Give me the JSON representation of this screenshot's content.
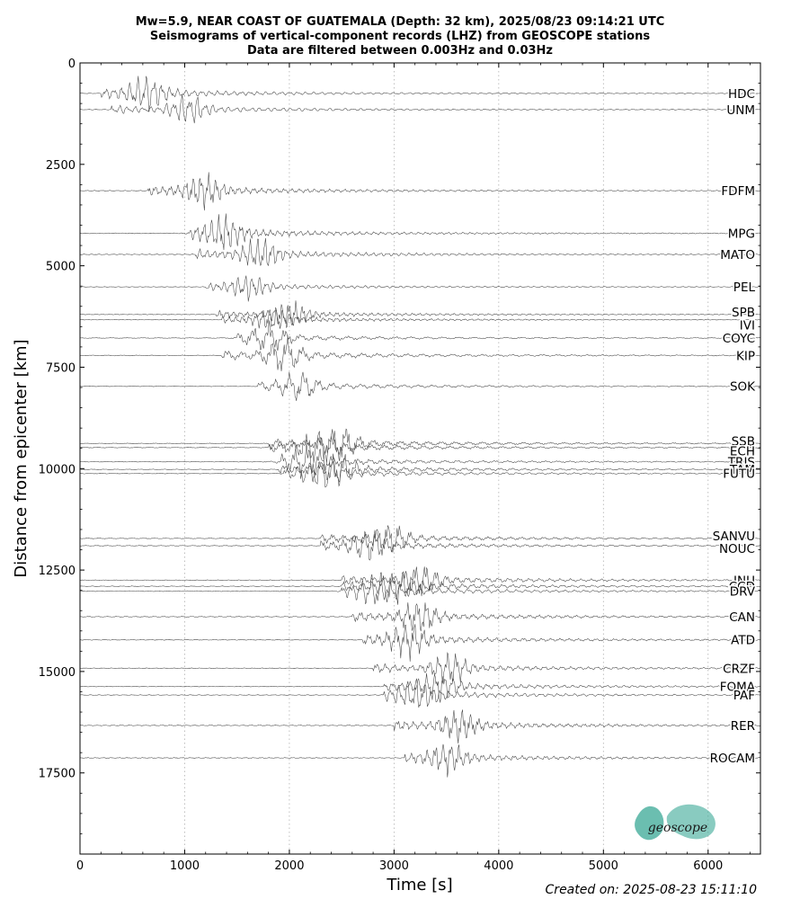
{
  "title_lines": [
    "Mw=5.9, NEAR COAST OF GUATEMALA (Depth: 32 km), 2025/08/23 09:14:21 UTC",
    "Seismograms of vertical-component records (LHZ) from GEOSCOPE stations",
    "Data are filtered between 0.003Hz and 0.03Hz"
  ],
  "created_label": "Created on: 2025-08-23 15:11:10",
  "logo_text": "geoscope",
  "colors": {
    "trace": "#444444",
    "logo_teal": "#3aa896",
    "grid": "#b0b0b0"
  },
  "chart_data": {
    "type": "line",
    "title": "Mw=5.9, NEAR COAST OF GUATEMALA (Depth: 32 km), 2025/08/23 09:14:21 UTC",
    "xlabel": "Time [s]",
    "ylabel": "Distance from epicenter [km]",
    "xlim": [
      0,
      6500
    ],
    "ylim": [
      19500,
      0
    ],
    "y_inverted": true,
    "xticks": [
      0,
      1000,
      2000,
      3000,
      4000,
      5000,
      6000
    ],
    "yticks": [
      0,
      2500,
      5000,
      7500,
      10000,
      12500,
      15000,
      17500
    ],
    "grid": "vertical-dotted",
    "series": [
      {
        "name": "HDC",
        "distance": 750,
        "onset": 200,
        "amp": 420,
        "label_offset": 0
      },
      {
        "name": "UNM",
        "distance": 1150,
        "onset": 300,
        "amp": 380,
        "label_offset": 0
      },
      {
        "name": "FDFM",
        "distance": 3150,
        "onset": 650,
        "amp": 420,
        "label_offset": 0
      },
      {
        "name": "MPG",
        "distance": 4200,
        "onset": 1050,
        "amp": 420,
        "label_offset": 0
      },
      {
        "name": "MATO",
        "distance": 4720,
        "onset": 1100,
        "amp": 420,
        "label_offset": 0
      },
      {
        "name": "PEL",
        "distance": 5520,
        "onset": 1200,
        "amp": 300,
        "label_offset": 0
      },
      {
        "name": "SPB",
        "distance": 6200,
        "onset": 1300,
        "amp": 320,
        "label_offset": -10
      },
      {
        "name": "IVI",
        "distance": 6330,
        "onset": 1350,
        "amp": 300,
        "label_offset": 20
      },
      {
        "name": "COYC",
        "distance": 6780,
        "onset": 1500,
        "amp": 320,
        "label_offset": 0
      },
      {
        "name": "KIP",
        "distance": 7210,
        "onset": 1350,
        "amp": 420,
        "label_offset": 0
      },
      {
        "name": "SOK",
        "distance": 7970,
        "onset": 1700,
        "amp": 350,
        "label_offset": 0
      },
      {
        "name": "SSB",
        "distance": 9380,
        "onset": 1800,
        "amp": 420,
        "label_offset": -10
      },
      {
        "name": "ECH",
        "distance": 9480,
        "onset": 1800,
        "amp": 400,
        "label_offset": 12
      },
      {
        "name": "TRIS",
        "distance": 9830,
        "onset": 1900,
        "amp": 380,
        "label_offset": 0
      },
      {
        "name": "TAM",
        "distance": 10020,
        "onset": 1900,
        "amp": 380,
        "label_offset": 0
      },
      {
        "name": "FUTU",
        "distance": 10120,
        "onset": 1950,
        "amp": 380,
        "label_offset": 0
      },
      {
        "name": "SANVU",
        "distance": 11720,
        "onset": 2300,
        "amp": 380,
        "label_offset": -10
      },
      {
        "name": "NOUC",
        "distance": 11900,
        "onset": 2300,
        "amp": 380,
        "label_offset": 10
      },
      {
        "name": "INU",
        "distance": 12750,
        "onset": 2500,
        "amp": 420,
        "label_offset": 0
      },
      {
        "name": "CCD",
        "distance": 12900,
        "onset": 2500,
        "amp": 400,
        "label_offset": 0
      },
      {
        "name": "DRV",
        "distance": 13020,
        "onset": 2500,
        "amp": 400,
        "label_offset": 0
      },
      {
        "name": "CAN",
        "distance": 13650,
        "onset": 2600,
        "amp": 420,
        "label_offset": 0
      },
      {
        "name": "ATD",
        "distance": 14220,
        "onset": 2700,
        "amp": 420,
        "label_offset": 0
      },
      {
        "name": "CRZF",
        "distance": 14920,
        "onset": 2800,
        "amp": 400,
        "label_offset": 0
      },
      {
        "name": "FOMA",
        "distance": 15370,
        "onset": 2900,
        "amp": 380,
        "label_offset": 0
      },
      {
        "name": "PAF",
        "distance": 15580,
        "onset": 2900,
        "amp": 380,
        "label_offset": 0
      },
      {
        "name": "RER",
        "distance": 16330,
        "onset": 3000,
        "amp": 420,
        "label_offset": 0
      },
      {
        "name": "ROCAM",
        "distance": 17130,
        "onset": 3100,
        "amp": 380,
        "label_offset": 0
      }
    ]
  }
}
